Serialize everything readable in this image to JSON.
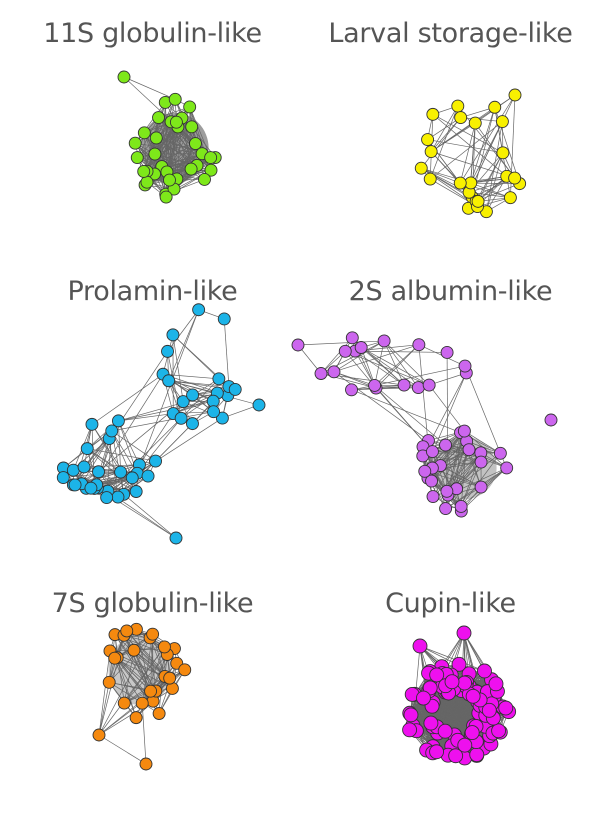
{
  "figure": {
    "panels": [
      {
        "id": "p11s",
        "title": "11S globulin-like",
        "node_color": "#7ee81a",
        "node_count": 35
      },
      {
        "id": "plarval",
        "title": "Larval storage-like",
        "node_color": "#f8f000",
        "node_count": 25
      },
      {
        "id": "pprolamin",
        "title": "Prolamin-like",
        "node_color": "#1cb4e8",
        "node_count": 50
      },
      {
        "id": "p2s",
        "title": "2S albumin-like",
        "node_color": "#cc66ee",
        "node_count": 45
      },
      {
        "id": "p7s",
        "title": "7S globulin-like",
        "node_color": "#f5890f",
        "node_count": 28
      },
      {
        "id": "pcupin",
        "title": "Cupin-like",
        "node_color": "#ee10ee",
        "node_count": 95
      }
    ],
    "edge_color": "#666666"
  }
}
